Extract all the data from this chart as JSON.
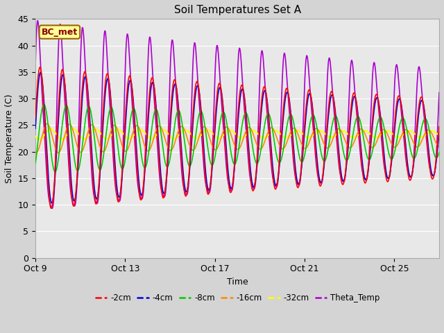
{
  "title": "Soil Temperatures Set A",
  "xlabel": "Time",
  "ylabel": "Soil Temperature (C)",
  "ylim": [
    0,
    45
  ],
  "yticks": [
    0,
    5,
    10,
    15,
    20,
    25,
    30,
    35,
    40,
    45
  ],
  "annotation": "BC_met",
  "colors": {
    "-2cm": "#ff0000",
    "-4cm": "#0000dd",
    "-8cm": "#00cc00",
    "-16cm": "#ff8800",
    "-32cm": "#ffff00",
    "Theta_Temp": "#aa00cc"
  },
  "legend_labels": [
    "-2cm",
    "-4cm",
    "-8cm",
    "-16cm",
    "-32cm",
    "Theta_Temp"
  ],
  "x_tick_labels": [
    "Oct 9",
    "Oct 13",
    "Oct 17",
    "Oct 21",
    "Oct 25"
  ],
  "x_tick_positions": [
    0,
    4,
    8,
    12,
    16
  ],
  "n_days": 18,
  "fig_width": 6.4,
  "fig_height": 4.8,
  "dpi": 100,
  "title_fontsize": 11,
  "tick_fontsize": 9,
  "axis_label_fontsize": 9,
  "lw": 1.2,
  "fig_bg": "#d4d4d4",
  "ax_bg": "#e8e8e8",
  "grid_color": "#ffffff",
  "annotation_fc": "#ffff99",
  "annotation_ec": "#996600",
  "annotation_tc": "#880000"
}
